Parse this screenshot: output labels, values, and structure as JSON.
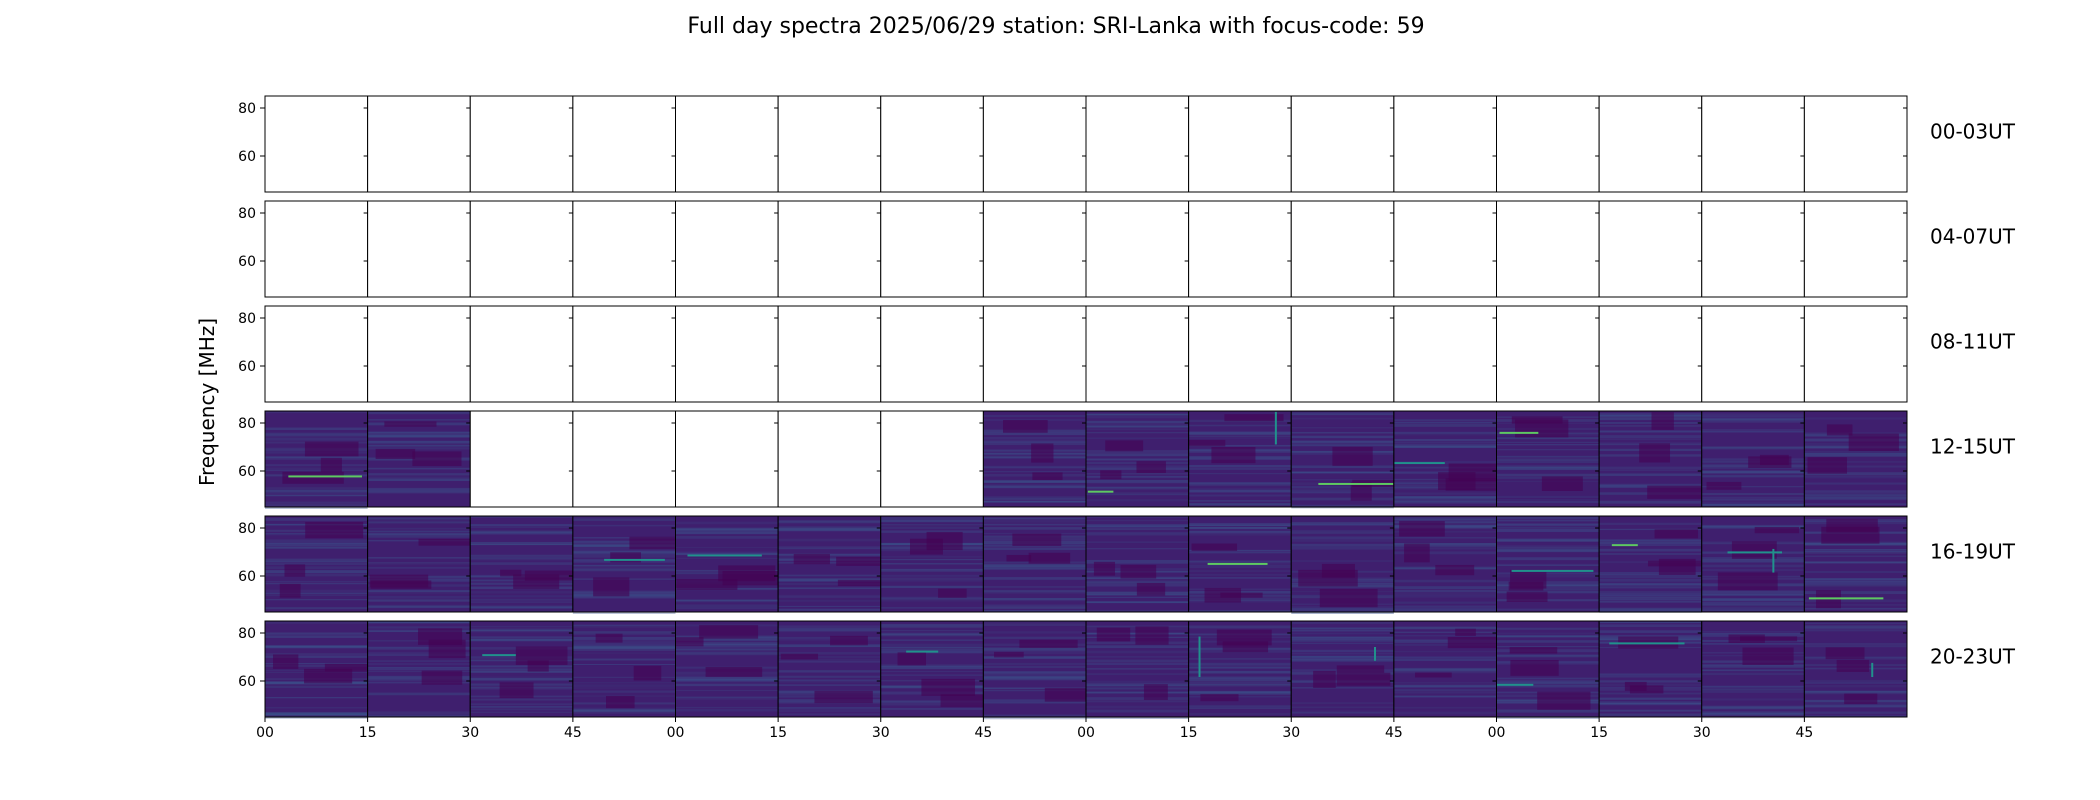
{
  "chart_data": {
    "type": "heatmap",
    "title": "Full day spectra 2025/06/29 station: SRI-Lanka with focus-code: 59",
    "ylabel": "Frequency [MHz]",
    "ylim": [
      45,
      85
    ],
    "y_ticks": [
      "80",
      "60"
    ],
    "x_ticks": [
      "00",
      "15",
      "30",
      "45",
      "00",
      "15",
      "30",
      "45",
      "00",
      "15",
      "30",
      "45",
      "00",
      "15",
      "30",
      "45"
    ],
    "rows": [
      {
        "label": "00-03UT",
        "panels_with_data": [
          false,
          false,
          false,
          false,
          false,
          false,
          false,
          false,
          false,
          false,
          false,
          false,
          false,
          false,
          false,
          false
        ]
      },
      {
        "label": "04-07UT",
        "panels_with_data": [
          false,
          false,
          false,
          false,
          false,
          false,
          false,
          false,
          false,
          false,
          false,
          false,
          false,
          false,
          false,
          false
        ]
      },
      {
        "label": "08-11UT",
        "panels_with_data": [
          false,
          false,
          false,
          false,
          false,
          false,
          false,
          false,
          false,
          false,
          false,
          false,
          false,
          false,
          false,
          false
        ]
      },
      {
        "label": "12-15UT",
        "panels_with_data": [
          true,
          true,
          false,
          false,
          false,
          false,
          false,
          true,
          true,
          true,
          true,
          true,
          true,
          true,
          true,
          true
        ]
      },
      {
        "label": "16-19UT",
        "panels_with_data": [
          true,
          true,
          true,
          true,
          true,
          true,
          true,
          true,
          true,
          true,
          true,
          true,
          true,
          true,
          true,
          true
        ]
      },
      {
        "label": "20-23UT",
        "panels_with_data": [
          true,
          true,
          true,
          true,
          true,
          true,
          true,
          true,
          true,
          true,
          true,
          true,
          true,
          true,
          true,
          true
        ]
      }
    ],
    "colormap": [
      "#440154",
      "#3b528b",
      "#21918c",
      "#5ec962",
      "#fde725"
    ],
    "background_color": "#3f1f6e"
  }
}
